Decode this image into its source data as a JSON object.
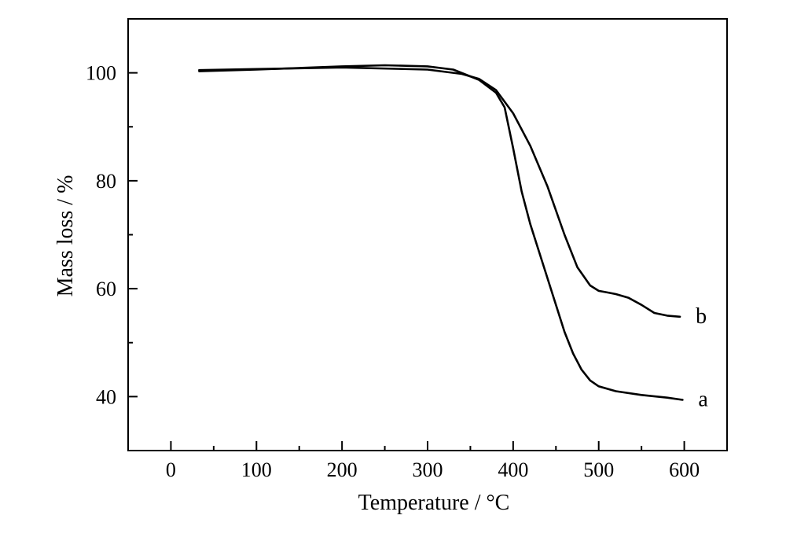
{
  "chart_data": {
    "type": "line",
    "title": "",
    "xlabel": "Temperature / °C",
    "ylabel": "Mass loss / %",
    "xlim": [
      -50,
      650
    ],
    "ylim": [
      30,
      110
    ],
    "x_ticks": [
      0,
      100,
      200,
      300,
      400,
      500,
      600
    ],
    "y_ticks": [
      40,
      60,
      80,
      100
    ],
    "grid": false,
    "legend": "none",
    "series": [
      {
        "name": "a",
        "x": [
          33,
          100,
          200,
          250,
          300,
          330,
          360,
          380,
          390,
          400,
          410,
          420,
          430,
          440,
          450,
          460,
          470,
          480,
          490,
          500,
          520,
          550,
          580,
          598
        ],
        "y": [
          100.3,
          100.6,
          101.2,
          101.4,
          101.2,
          100.6,
          98.7,
          96.3,
          93.6,
          86,
          78,
          72,
          67,
          62,
          57,
          52,
          48,
          45,
          43,
          41.9,
          41,
          40.3,
          39.8,
          39.4
        ]
      },
      {
        "name": "b",
        "x": [
          33,
          100,
          200,
          300,
          340,
          360,
          380,
          400,
          420,
          440,
          460,
          475,
          490,
          500,
          510,
          520,
          535,
          550,
          565,
          580,
          595
        ],
        "y": [
          100.5,
          100.7,
          101,
          100.6,
          99.8,
          98.9,
          96.8,
          92.5,
          86.5,
          79,
          70,
          64,
          60.6,
          59.6,
          59.3,
          59,
          58.3,
          57,
          55.5,
          55,
          54.8
        ]
      }
    ]
  }
}
